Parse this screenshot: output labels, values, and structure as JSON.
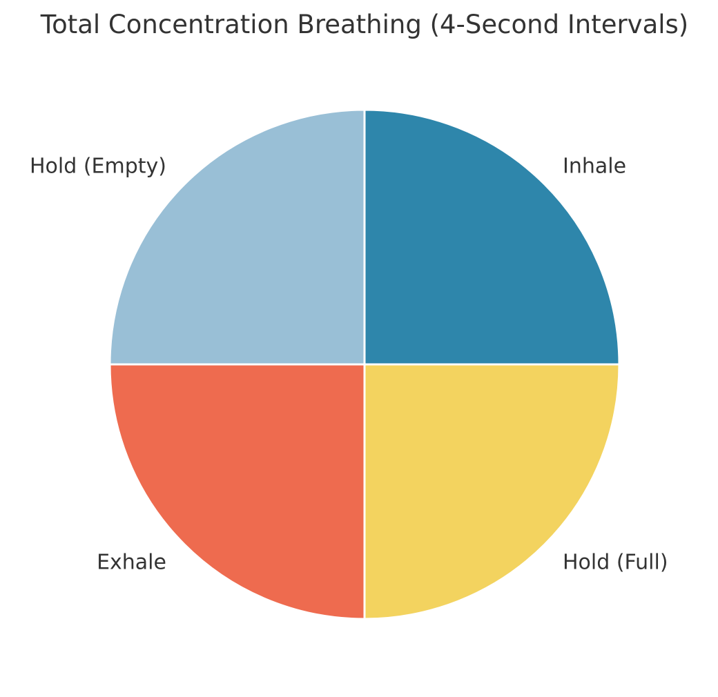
{
  "chart_data": {
    "type": "pie",
    "title": "Total Concentration Breathing (4-Second Intervals)",
    "labels": [
      "Inhale",
      "Hold (Full)",
      "Exhale",
      "Hold (Empty)"
    ],
    "values": [
      4,
      4,
      4,
      4
    ],
    "colors": [
      "#2e86ab",
      "#f3d35f",
      "#ee6b4f",
      "#99bfd6"
    ],
    "start_angle": "12 o'clock",
    "direction": "clockwise",
    "slice_edge_color": "#ffffff"
  }
}
